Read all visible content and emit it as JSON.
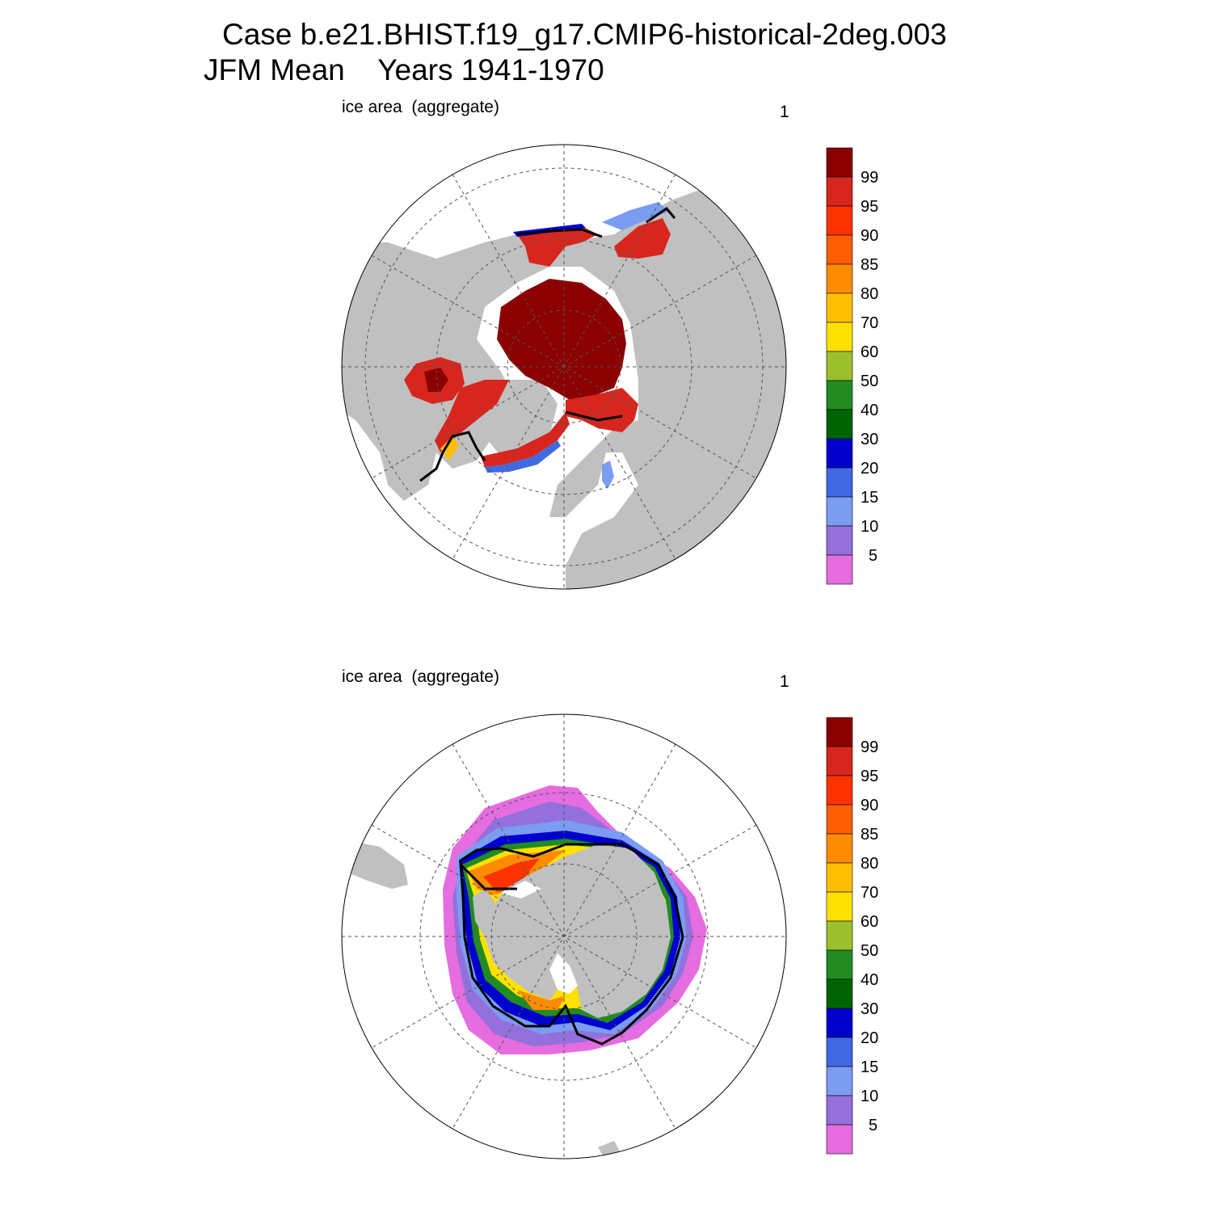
{
  "header": {
    "title_line1": "Case b.e21.BHIST.f19_g17.CMIP6-historical-2deg.003",
    "title_line2": "JFM Mean    Years 1941-1970"
  },
  "panels": [
    {
      "label": "ice area  (aggregate)",
      "number": "1",
      "hemisphere": "north"
    },
    {
      "label": "ice area  (aggregate)",
      "number": "1",
      "hemisphere": "south"
    }
  ],
  "colorbar": {
    "labels": [
      "99",
      "95",
      "90",
      "85",
      "80",
      "70",
      "60",
      "50",
      "40",
      "30",
      "20",
      "15",
      "10",
      "5"
    ],
    "colors": [
      "#8b0000",
      "#d7261e",
      "#ff3300",
      "#ff5e00",
      "#ff8c00",
      "#ffbf00",
      "#ffe100",
      "#9dbf2e",
      "#228b22",
      "#006400",
      "#0000cd",
      "#4169e1",
      "#7b9cf0",
      "#9370db",
      "#e56de0"
    ]
  },
  "colors": {
    "land": "#c0c0c0",
    "ocean": "#ffffff",
    "grid": "#555555"
  }
}
